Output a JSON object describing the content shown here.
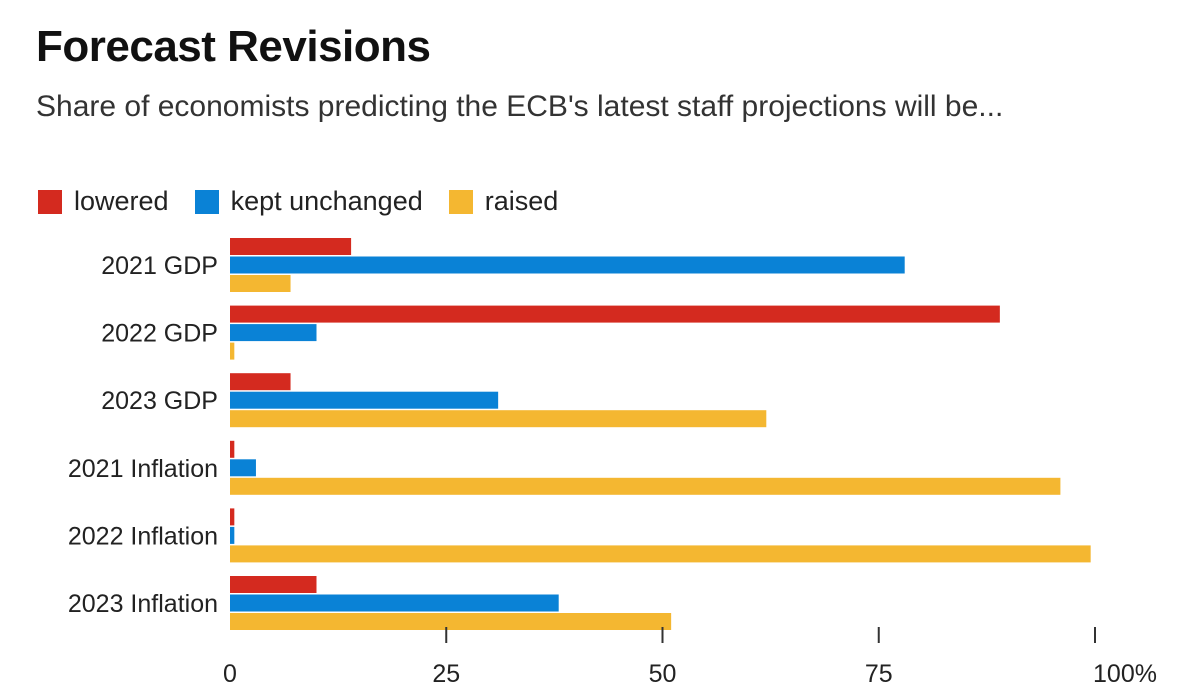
{
  "chart_data": {
    "type": "bar",
    "orientation": "horizontal",
    "title": "Forecast Revisions",
    "subtitle": "Share of economists predicting the ECB's latest staff projections will be...",
    "xlabel": "",
    "ylabel": "",
    "xlim": [
      0,
      100
    ],
    "x_ticks": [
      0,
      25,
      50,
      75,
      100
    ],
    "x_tick_labels": [
      "0",
      "25",
      "50",
      "75",
      "100%"
    ],
    "grid": false,
    "legend_position": "top-left",
    "categories": [
      "2021 GDP",
      "2022 GDP",
      "2023 GDP",
      "2021 Inflation",
      "2022 Inflation",
      "2023 Inflation"
    ],
    "series": [
      {
        "name": "lowered",
        "color": "#d42a1f",
        "values": [
          14,
          89,
          7,
          0.5,
          0.5,
          10
        ]
      },
      {
        "name": "kept unchanged",
        "color": "#0a82d6",
        "values": [
          78,
          10,
          31,
          3,
          0.5,
          38
        ]
      },
      {
        "name": "raised",
        "color": "#f4b731",
        "values": [
          7,
          0.5,
          62,
          96,
          99.5,
          51
        ]
      }
    ]
  }
}
